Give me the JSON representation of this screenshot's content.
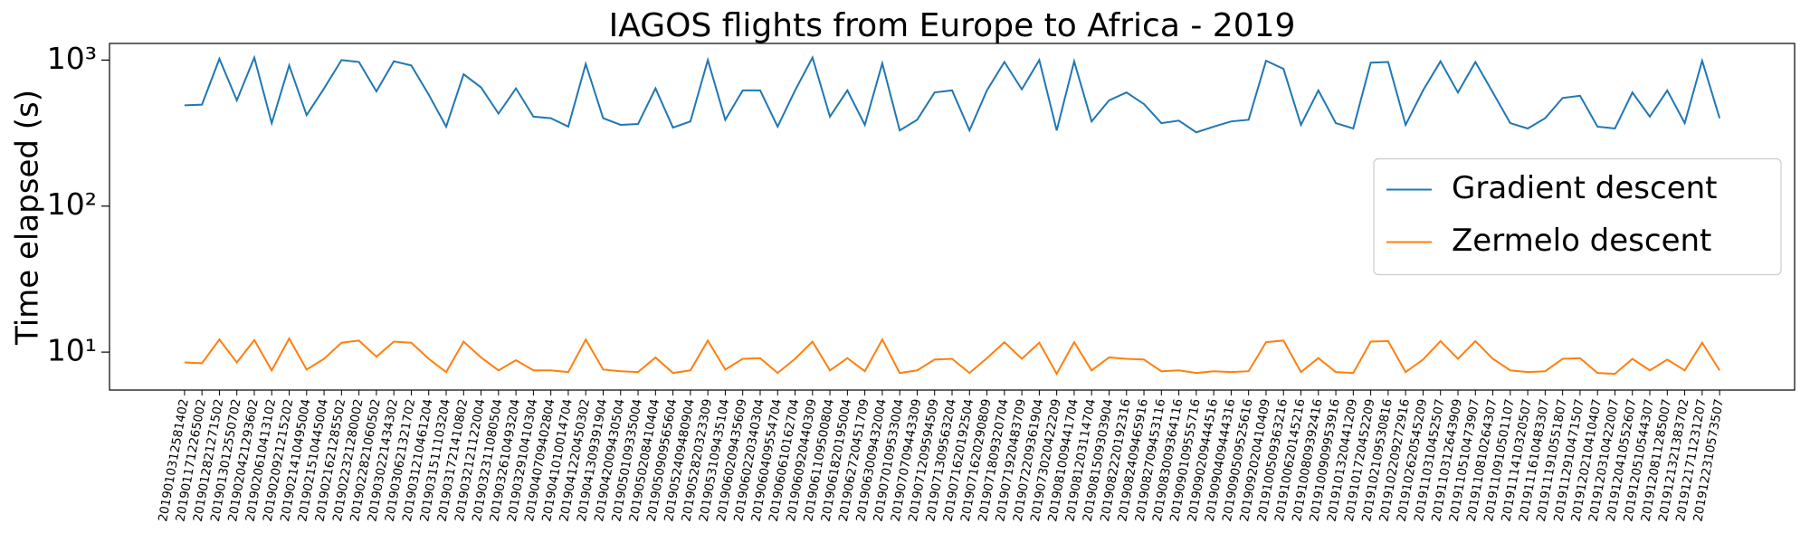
{
  "chart_data": {
    "type": "line",
    "title": "IAGOS flights from Europe to Africa - 2019",
    "y_label": "Time elapsed (s)",
    "log_y": true,
    "legend": "center right",
    "categories": [
      "2019010312581402",
      "2019011712265002",
      "2019012821271502",
      "2019013012550702",
      "2019020421293602",
      "2019020610413102",
      "2019020921215202",
      "2019021410495004",
      "2019021510445004",
      "2019021621285502",
      "2019022321280002",
      "2019022821060502",
      "2019030221434302",
      "2019030621321702",
      "2019031210461204",
      "2019031511103204",
      "2019031721410802",
      "2019032121122004",
      "2019032311080504",
      "2019032610493204",
      "2019032910410304",
      "2019040709402804",
      "2019041010014704",
      "2019041220450302",
      "2019041309391904",
      "2019042009430504",
      "2019050109335004",
      "2019050208410404",
      "2019050909565604",
      "2019052409480904",
      "2019052820323309",
      "2019053109435104",
      "2019060209435609",
      "2019060220340304",
      "2019060409554704",
      "2019060610162704",
      "2019060920440309",
      "2019061109500804",
      "2019061820195004",
      "2019062720451709",
      "2019063009432004",
      "2019070109533004",
      "2019070709443309",
      "2019071209594509",
      "2019071309563204",
      "2019071620192504",
      "2019071620290809",
      "2019071809320704",
      "2019071920483709",
      "2019072209361904",
      "2019073020422209",
      "2019081009441704",
      "2019081203114704",
      "2019081509303904",
      "2019082220192316",
      "2019082409465916",
      "2019082709453116",
      "2019083009364116",
      "2019090109555716",
      "2019090209444516",
      "2019090409444316",
      "2019090509525616",
      "2019092020410409",
      "2019100509363216",
      "2019100620145216",
      "2019100809392416",
      "2019100909953916",
      "2019101320441209",
      "2019101720452209",
      "2019102109530816",
      "2019102209272916",
      "2019102620545209",
      "2019110310452507",
      "2019110312643909",
      "2019110510473907",
      "2019110810264307",
      "2019110910501107",
      "2019111410320507",
      "2019111610483307",
      "2019111910551807",
      "2019112910471507",
      "2019120210410407",
      "2019120310422007",
      "2019120410552607",
      "2019120510544307",
      "2019120811285007",
      "2019121321383702",
      "2019121711231207",
      "2019122310573507"
    ],
    "series": [
      {
        "name": "Gradient descent",
        "color": "#1f77b4",
        "values": [
          490,
          495,
          1020,
          530,
          1040,
          370,
          920,
          420,
          640,
          1000,
          970,
          610,
          980,
          920,
          580,
          350,
          800,
          650,
          430,
          640,
          410,
          400,
          350,
          940,
          400,
          360,
          365,
          640,
          345,
          380,
          1000,
          390,
          620,
          620,
          350,
          620,
          1040,
          410,
          620,
          360,
          950,
          330,
          390,
          600,
          620,
          330,
          620,
          970,
          630,
          1000,
          330,
          980,
          380,
          530,
          600,
          500,
          370,
          385,
          320,
          350,
          380,
          390,
          990,
          870,
          360,
          620,
          370,
          340,
          960,
          970,
          360,
          620,
          980,
          600,
          970,
          600,
          370,
          340,
          400,
          550,
          570,
          350,
          340,
          600,
          410,
          620,
          370,
          990,
          400
        ]
      },
      {
        "name": "Zermelo descent",
        "color": "#ff7f0e",
        "values": [
          8.5,
          8.4,
          12.2,
          8.5,
          12.1,
          7.5,
          12.4,
          7.6,
          9,
          11.6,
          12,
          9.3,
          11.8,
          11.6,
          9,
          7.3,
          11.8,
          9.2,
          7.5,
          8.8,
          7.5,
          7.5,
          7.3,
          12.2,
          7.6,
          7.4,
          7.3,
          9.2,
          7.2,
          7.5,
          12,
          7.6,
          9,
          9.1,
          7.2,
          9,
          11.8,
          7.5,
          9.1,
          7.4,
          12.2,
          7.2,
          7.5,
          8.9,
          9,
          7.2,
          9.1,
          11.7,
          9,
          11.6,
          7.1,
          11.7,
          7.5,
          9.2,
          9,
          8.9,
          7.4,
          7.5,
          7.2,
          7.4,
          7.3,
          7.4,
          11.7,
          12,
          7.3,
          9.1,
          7.3,
          7.2,
          11.8,
          11.9,
          7.3,
          8.9,
          11.9,
          9,
          11.9,
          9,
          7.5,
          7.3,
          7.4,
          9,
          9.1,
          7.2,
          7.1,
          9,
          7.5,
          8.9,
          7.5,
          11.6,
          7.5
        ]
      }
    ],
    "ylim": [
      5.5,
      1300
    ],
    "yticks": [
      {
        "value": 10,
        "label": "10¹"
      },
      {
        "value": 100,
        "label": "10²"
      },
      {
        "value": 1000,
        "label": "10³"
      }
    ]
  }
}
